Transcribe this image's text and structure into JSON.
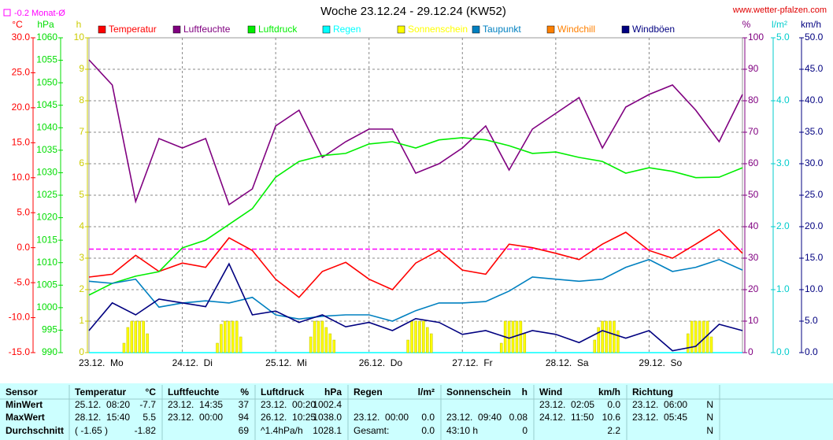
{
  "chart_data": {
    "type": "line",
    "title": "Woche 23.12.24 - 29.12.24 (KW52)",
    "source": "www.wetter-pfalzen.com",
    "reference": {
      "label": "-0.2 Monat-Ø",
      "value": -0.2,
      "color": "#ff00ff",
      "axis": "°C"
    },
    "grid": "h",
    "xlim": [
      0,
      168
    ],
    "xticks": [
      {
        "value": 0,
        "label": "23.12.  Mo"
      },
      {
        "value": 24,
        "label": "24.12.  Di"
      },
      {
        "value": 48,
        "label": "25.12.  Mi"
      },
      {
        "value": 72,
        "label": "26.12.  Do"
      },
      {
        "value": 96,
        "label": "27.12.  Fr"
      },
      {
        "value": 120,
        "label": "28.12.  Sa"
      },
      {
        "value": 144,
        "label": "29.12.  So"
      }
    ],
    "axes": [
      {
        "unit": "°C",
        "color": "#ff0000",
        "lim": [
          -15,
          30
        ],
        "ticks": [
          {
            "value": -15,
            "label": "-15.0"
          },
          {
            "value": -10,
            "label": "-10.0"
          },
          {
            "value": -5,
            "label": "-5.0"
          },
          {
            "value": 0,
            "label": "0.0"
          },
          {
            "value": 5,
            "label": "5.0"
          },
          {
            "value": 10,
            "label": "10.0"
          },
          {
            "value": 15,
            "label": "15.0"
          },
          {
            "value": 20,
            "label": "20.0"
          },
          {
            "value": 25,
            "label": "25.0"
          },
          {
            "value": 30,
            "label": "30.0"
          }
        ]
      },
      {
        "unit": "hPa",
        "color": "#00dd00",
        "lim": [
          990,
          1060
        ],
        "ticks": [
          990,
          995,
          1000,
          1005,
          1010,
          1015,
          1020,
          1025,
          1030,
          1035,
          1040,
          1045,
          1050,
          1055,
          1060
        ]
      },
      {
        "unit": "h",
        "color": "#cccc00",
        "lim": [
          0,
          10
        ],
        "ticks": [
          0,
          1,
          2,
          3,
          4,
          5,
          6,
          7,
          8,
          9,
          10
        ]
      },
      {
        "unit": "%",
        "color": "#800080",
        "lim": [
          0,
          100
        ],
        "ticks": [
          0,
          10,
          20,
          30,
          40,
          50,
          60,
          70,
          80,
          90,
          100
        ]
      },
      {
        "unit": "l/m²",
        "color": "#00cccc",
        "lim": [
          0,
          5
        ],
        "ticks": [
          {
            "value": 0,
            "label": "0.0"
          },
          {
            "value": 1,
            "label": "1.0"
          },
          {
            "value": 2,
            "label": "2.0"
          },
          {
            "value": 3,
            "label": "3.0"
          },
          {
            "value": 4,
            "label": "4.0"
          },
          {
            "value": 5,
            "label": "5.0"
          }
        ]
      },
      {
        "unit": "km/h",
        "color": "#000080",
        "lim": [
          0,
          50
        ],
        "ticks": [
          {
            "value": 0,
            "label": "0.0"
          },
          {
            "value": 5,
            "label": "5.0"
          },
          {
            "value": 10,
            "label": "10.0"
          },
          {
            "value": 15,
            "label": "15.0"
          },
          {
            "value": 20,
            "label": "20.0"
          },
          {
            "value": 25,
            "label": "25.0"
          },
          {
            "value": 30,
            "label": "30.0"
          },
          {
            "value": 35,
            "label": "35.0"
          },
          {
            "value": 40,
            "label": "40.0"
          },
          {
            "value": 45,
            "label": "45.0"
          },
          {
            "value": 50,
            "label": "50.0"
          }
        ]
      }
    ],
    "x": [
      0,
      6,
      12,
      18,
      24,
      30,
      36,
      42,
      48,
      54,
      60,
      66,
      72,
      78,
      84,
      90,
      96,
      102,
      108,
      114,
      120,
      126,
      132,
      138,
      144,
      150,
      156,
      162,
      168
    ],
    "series": [
      {
        "name": "Temperatur",
        "color": "#ff0000",
        "axis": "°C",
        "values": [
          -4.2,
          -3.8,
          -1.1,
          -3.4,
          -2.2,
          -2.8,
          1.4,
          -0.4,
          -4.5,
          -7.1,
          -3.4,
          -2.1,
          -4.5,
          -6.0,
          -2.2,
          -0.4,
          -3.2,
          -3.8,
          0.5,
          0.0,
          -0.8,
          -1.7,
          0.5,
          2.2,
          -0.4,
          -1.5,
          0.5,
          2.6,
          -0.8
        ]
      },
      {
        "name": "Luftfeuchte",
        "color": "#800080",
        "axis": "%",
        "values": [
          93,
          85,
          48,
          68,
          65,
          68,
          47,
          52,
          72,
          77,
          62,
          67,
          71,
          71,
          57,
          60,
          65,
          72,
          58,
          71,
          76,
          81,
          65,
          78,
          82,
          85,
          77,
          67,
          82
        ]
      },
      {
        "name": "Luftdruck",
        "color": "#00ee00",
        "axis": "hPa",
        "values": [
          1002.8,
          1005.4,
          1007,
          1008,
          1013.3,
          1015,
          1018.5,
          1022,
          1029,
          1032.5,
          1033.8,
          1034.3,
          1036.4,
          1036.9,
          1035.5,
          1037.3,
          1037.8,
          1037.3,
          1036,
          1034.3,
          1034.6,
          1033.4,
          1032.5,
          1029.9,
          1031.1,
          1030.3,
          1028.9,
          1029,
          1031.1
        ]
      },
      {
        "name": "Regen",
        "color": "#00ffff",
        "axis": "l/m²",
        "values": [
          0,
          0,
          0,
          0,
          0,
          0,
          0,
          0,
          0,
          0,
          0,
          0,
          0,
          0,
          0,
          0,
          0,
          0,
          0,
          0,
          0,
          0,
          0,
          0,
          0,
          0,
          0,
          0,
          0
        ]
      },
      {
        "name": "Sonnenschein",
        "color": "#ffff00",
        "axis": "h",
        "type": "bar",
        "x": [
          9,
          10,
          11,
          12,
          13,
          14,
          15,
          33,
          34,
          35,
          36,
          37,
          38,
          39,
          57,
          58,
          59,
          60,
          61,
          62,
          63,
          82,
          83,
          84,
          85,
          86,
          87,
          88,
          106,
          107,
          108,
          109,
          110,
          111,
          112,
          130,
          131,
          132,
          133,
          134,
          135,
          136,
          154,
          155,
          156,
          157,
          158,
          159,
          160
        ],
        "values": [
          0.3,
          0.8,
          1,
          1,
          1,
          1,
          0.6,
          0.3,
          0.9,
          1,
          1,
          1,
          1,
          0.5,
          0.5,
          1,
          1,
          1,
          0.8,
          0.6,
          0.4,
          0.4,
          1,
          1,
          1,
          1,
          0.8,
          0.6,
          0.3,
          1,
          1,
          1,
          1,
          1,
          0.6,
          0.4,
          0.8,
          1,
          1,
          1,
          1,
          0.7,
          0.6,
          1,
          1,
          1,
          1,
          1,
          0.5
        ]
      },
      {
        "name": "Taupunkt",
        "color": "#0080c0",
        "axis": "°C",
        "values": [
          -4.8,
          -5.1,
          -4.5,
          -8.5,
          -7.9,
          -7.6,
          -7.9,
          -7.1,
          -9.6,
          -10.2,
          -9.8,
          -9.6,
          -9.6,
          -10.5,
          -9.0,
          -7.9,
          -7.9,
          -7.7,
          -6.2,
          -4.2,
          -4.5,
          -4.8,
          -4.5,
          -2.8,
          -1.7,
          -3.4,
          -2.8,
          -1.7,
          -3.2
        ]
      },
      {
        "name": "Windchill",
        "color": "#ff8000",
        "axis": "°C"
      },
      {
        "name": "Windböen",
        "color": "#000080",
        "axis": "km/h",
        "values": [
          3.5,
          7.9,
          6,
          8.5,
          7.9,
          7.3,
          14.1,
          6,
          6.6,
          4.8,
          6,
          4.1,
          4.8,
          3.5,
          5.4,
          4.8,
          2.9,
          3.5,
          2.3,
          3.5,
          2.9,
          1.6,
          3.5,
          2.3,
          3.5,
          0.3,
          1,
          4.5,
          3.5
        ]
      }
    ]
  },
  "table": {
    "columns": [
      {
        "name": "Sensor"
      },
      {
        "name": "Temperatur",
        "unit": "°C"
      },
      {
        "name": "Luftfeuchte",
        "unit": "%"
      },
      {
        "name": "Luftdruck",
        "unit": "hPa"
      },
      {
        "name": "Regen",
        "unit": "l/m²"
      },
      {
        "name": "Sonnenschein",
        "unit": "h"
      },
      {
        "name": "Wind",
        "unit": "km/h"
      },
      {
        "name": "Richtung"
      }
    ],
    "rows": [
      {
        "label": "MinWert",
        "cells": [
          {
            "when": "25.12.  08:20",
            "value": "-7.7"
          },
          {
            "when": "23.12.  14:35",
            "value": "37"
          },
          {
            "when": "23.12.  00:20",
            "value": "1002.4"
          },
          null,
          null,
          {
            "when": "23.12.  02:05",
            "value": "0.0"
          },
          {
            "when": "23.12.  06:00",
            "value": "N"
          }
        ]
      },
      {
        "label": "MaxWert",
        "cells": [
          {
            "when": "28.12.  15:40",
            "value": "5.5"
          },
          {
            "when": "23.12.  00:00",
            "value": "94"
          },
          {
            "when": "26.12.  10:25",
            "value": "1038.0"
          },
          {
            "when": "23.12.  00:00",
            "value": "0.0"
          },
          {
            "when": "23.12.  09:40",
            "value": "0.08"
          },
          {
            "when": "24.12.  11:50",
            "value": "10.6"
          },
          {
            "when": "23.12.  05:45",
            "value": "N"
          }
        ]
      },
      {
        "label": "Durchschnitt",
        "cells": [
          {
            "when": "( -1.65 )",
            "value": "-1.82"
          },
          {
            "value": "69"
          },
          {
            "when": "^1.4hPa/h",
            "value": "1028.1"
          },
          {
            "when": "Gesamt:",
            "value": "0.0"
          },
          {
            "when": "43:10 h",
            "value": "0"
          },
          {
            "value": "2.2"
          },
          {
            "value": "N"
          }
        ]
      }
    ]
  }
}
